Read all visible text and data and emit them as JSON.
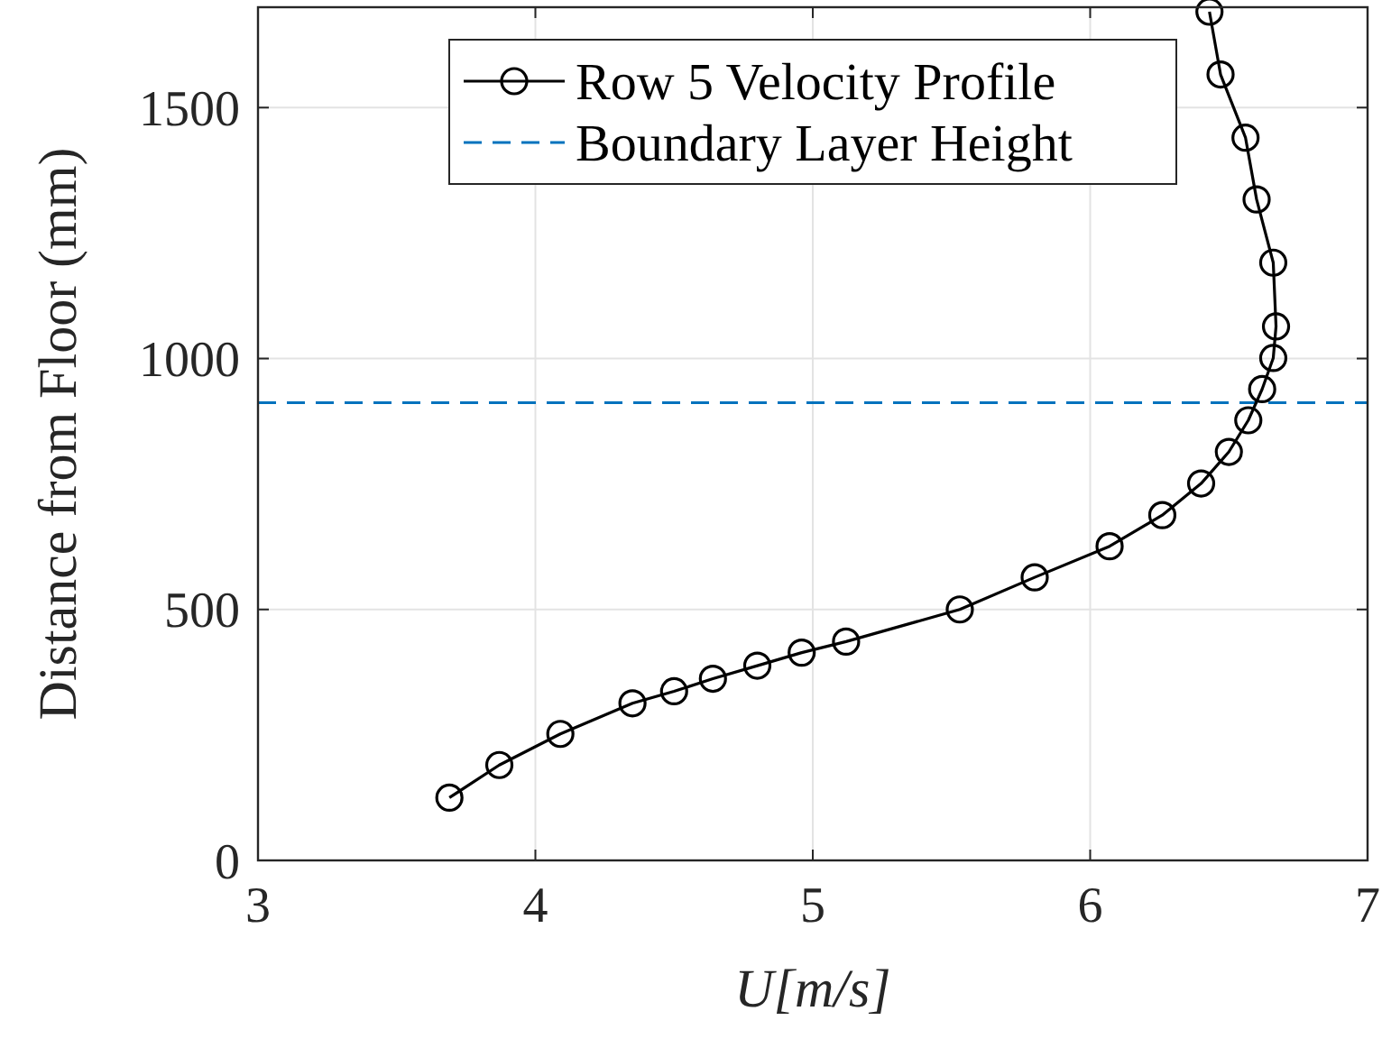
{
  "chart_data": {
    "type": "line",
    "xlabel": "U[m/s]",
    "ylabel": "Distance from Floor (mm)",
    "xlim": [
      3,
      7
    ],
    "xticks": [
      3,
      4,
      5,
      6,
      7
    ],
    "ylim": [
      0,
      1700
    ],
    "yticks": [
      0,
      500,
      1000,
      1500
    ],
    "grid": true,
    "legend": "top",
    "marker": "circle",
    "line_style": "solid",
    "series": [
      {
        "name": "Row 5 Velocity Profile",
        "color": "#000000",
        "x": [
          3.69,
          3.87,
          4.09,
          4.35,
          4.5,
          4.64,
          4.8,
          4.96,
          5.12,
          5.53,
          5.8,
          6.07,
          6.26,
          6.4,
          6.5,
          6.57,
          6.62,
          6.66,
          6.67,
          6.66,
          6.6,
          6.56,
          6.47,
          6.43
        ],
        "values": [
          125,
          190,
          252,
          313,
          337,
          362,
          388,
          414,
          436,
          500,
          564,
          626,
          688,
          751,
          814,
          877,
          939,
          1001,
          1064,
          1191,
          1317,
          1440,
          1566,
          1691
        ]
      }
    ],
    "ref_lines": [
      {
        "axis": "y",
        "value": 912,
        "label": "Boundary Layer Height",
        "color": "#0072bd",
        "line_style": "dashed"
      }
    ]
  }
}
